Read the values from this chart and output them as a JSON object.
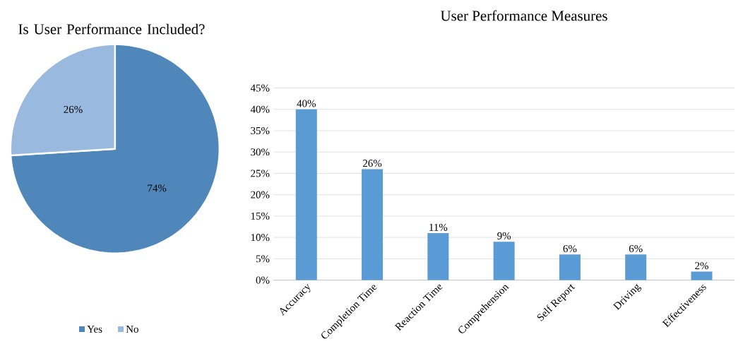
{
  "chart_data": [
    {
      "type": "pie",
      "title": "Is User Performance Included?",
      "categories": [
        "Yes",
        "No"
      ],
      "values": [
        74,
        26
      ],
      "colors": [
        "#4f87bb",
        "#9ab9de"
      ],
      "value_labels": [
        "74%",
        "26%"
      ],
      "legend": "bottom"
    },
    {
      "type": "bar",
      "title": "User Performance Measures",
      "categories": [
        "Accuracy",
        "Completion Time",
        "Reaction Time",
        "Comprehension",
        "Self Report",
        "Driving",
        "Effectiveness"
      ],
      "values": [
        40,
        26,
        11,
        9,
        6,
        6,
        2
      ],
      "value_labels": [
        "40%",
        "26%",
        "11%",
        "9%",
        "6%",
        "6%",
        "2%"
      ],
      "color": "#5b9bd5",
      "ylim": [
        0,
        45
      ],
      "yticks": [
        {
          "value": 0,
          "label": "0%"
        },
        {
          "value": 5,
          "label": "5%"
        },
        {
          "value": 10,
          "label": "10%"
        },
        {
          "value": 15,
          "label": "15%"
        },
        {
          "value": 20,
          "label": "20%"
        },
        {
          "value": 25,
          "label": "25%"
        },
        {
          "value": 30,
          "label": "30%"
        },
        {
          "value": 35,
          "label": "35%"
        },
        {
          "value": 40,
          "label": "40%"
        },
        {
          "value": 45,
          "label": "45%"
        }
      ],
      "grid": "y"
    }
  ]
}
